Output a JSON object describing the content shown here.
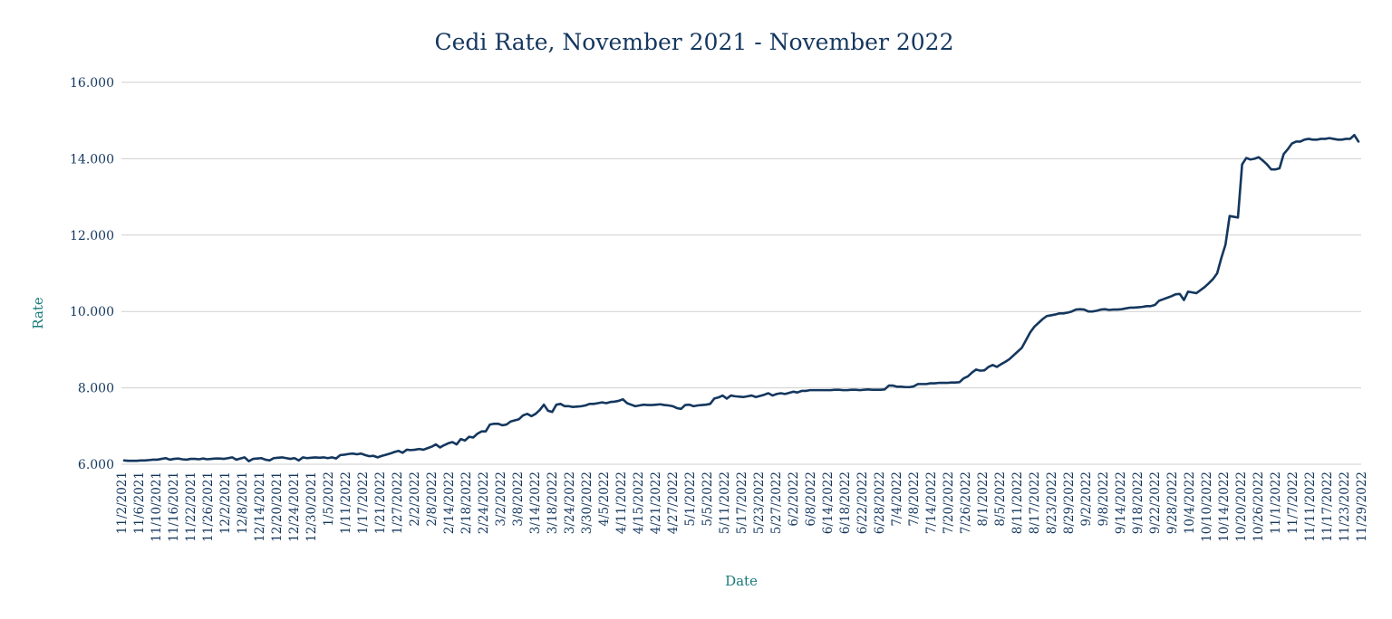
{
  "chart_data": {
    "type": "line",
    "title": "Cedi Rate, November 2021 - November 2022",
    "xlabel": "Date",
    "ylabel": "Rate",
    "ylim": [
      6,
      16
    ],
    "yticks": [
      "6.000",
      "8.000",
      "10.000",
      "12.000",
      "14.000",
      "16.000"
    ],
    "grid": true,
    "legend": "none",
    "line_color": "#14375e",
    "x_tick_labels": [
      "11/2/2021",
      "11/6/2021",
      "11/10/2021",
      "11/16/2021",
      "11/22/2021",
      "11/26/2021",
      "12/2/2021",
      "12/8/2021",
      "12/14/2021",
      "12/20/2021",
      "12/24/2021",
      "12/30/2021",
      "1/5/2022",
      "1/11/2022",
      "1/17/2022",
      "1/21/2022",
      "1/27/2022",
      "2/2/2022",
      "2/8/2022",
      "2/14/2022",
      "2/18/2022",
      "2/24/2022",
      "3/2/2022",
      "3/8/2022",
      "3/14/2022",
      "3/18/2022",
      "3/24/2022",
      "3/30/2022",
      "4/5/2022",
      "4/11/2022",
      "4/15/2022",
      "4/21/2022",
      "4/27/2022",
      "5/1/2022",
      "5/5/2022",
      "5/11/2022",
      "5/17/2022",
      "5/23/2022",
      "5/27/2022",
      "6/2/2022",
      "6/8/2022",
      "6/14/2022",
      "6/18/2022",
      "6/22/2022",
      "6/28/2022",
      "7/4/2022",
      "7/8/2022",
      "7/14/2022",
      "7/20/2022",
      "7/26/2022",
      "8/1/2022",
      "8/5/2022",
      "8/11/2022",
      "8/17/2022",
      "8/23/2022",
      "8/29/2022",
      "9/2/2022",
      "9/8/2022",
      "9/14/2022",
      "9/18/2022",
      "9/22/2022",
      "9/28/2022",
      "10/4/2022",
      "10/10/2022",
      "10/14/2022",
      "10/20/2022",
      "10/26/2022",
      "11/1/2022",
      "11/7/2022",
      "11/11/2022",
      "11/17/2022",
      "11/23/2022",
      "11/29/2022"
    ],
    "series": [
      {
        "values": [
          6.1,
          6.09,
          6.09,
          6.09,
          6.1,
          6.1,
          6.11,
          6.12,
          6.12,
          6.14,
          6.16,
          6.12,
          6.14,
          6.15,
          6.13,
          6.12,
          6.14,
          6.14,
          6.13,
          6.15,
          6.13,
          6.14,
          6.15,
          6.15,
          6.14,
          6.16,
          6.18,
          6.12,
          6.15,
          6.18,
          6.08,
          6.14,
          6.15,
          6.16,
          6.12,
          6.1,
          6.16,
          6.17,
          6.18,
          6.16,
          6.14,
          6.16,
          6.1,
          6.18,
          6.16,
          6.17,
          6.18,
          6.17,
          6.18,
          6.16,
          6.18,
          6.15,
          6.24,
          6.25,
          6.27,
          6.28,
          6.26,
          6.28,
          6.24,
          6.21,
          6.22,
          6.18,
          6.22,
          6.25,
          6.28,
          6.32,
          6.35,
          6.3,
          6.38,
          6.37,
          6.38,
          6.4,
          6.38,
          6.42,
          6.46,
          6.52,
          6.44,
          6.5,
          6.55,
          6.58,
          6.52,
          6.66,
          6.62,
          6.72,
          6.7,
          6.8,
          6.86,
          6.86,
          7.04,
          7.06,
          7.06,
          7.02,
          7.04,
          7.12,
          7.15,
          7.18,
          7.28,
          7.32,
          7.26,
          7.32,
          7.42,
          7.56,
          7.4,
          7.37,
          7.56,
          7.58,
          7.52,
          7.52,
          7.5,
          7.51,
          7.52,
          7.54,
          7.58,
          7.58,
          7.6,
          7.62,
          7.6,
          7.63,
          7.64,
          7.66,
          7.7,
          7.6,
          7.56,
          7.52,
          7.54,
          7.56,
          7.55,
          7.55,
          7.56,
          7.57,
          7.55,
          7.54,
          7.52,
          7.47,
          7.45,
          7.55,
          7.56,
          7.52,
          7.54,
          7.55,
          7.56,
          7.58,
          7.72,
          7.75,
          7.8,
          7.72,
          7.8,
          7.78,
          7.77,
          7.76,
          7.78,
          7.8,
          7.76,
          7.79,
          7.82,
          7.86,
          7.8,
          7.84,
          7.86,
          7.84,
          7.87,
          7.9,
          7.88,
          7.92,
          7.92,
          7.94,
          7.94,
          7.94,
          7.94,
          7.94,
          7.94,
          7.95,
          7.95,
          7.94,
          7.94,
          7.95,
          7.95,
          7.94,
          7.95,
          7.96,
          7.95,
          7.95,
          7.95,
          7.96,
          8.06,
          8.06,
          8.03,
          8.03,
          8.02,
          8.02,
          8.04,
          8.1,
          8.1,
          8.1,
          8.12,
          8.12,
          8.13,
          8.13,
          8.13,
          8.14,
          8.14,
          8.15,
          8.25,
          8.3,
          8.4,
          8.48,
          8.45,
          8.46,
          8.55,
          8.6,
          8.55,
          8.62,
          8.68,
          8.75,
          8.85,
          8.95,
          9.05,
          9.25,
          9.45,
          9.6,
          9.7,
          9.8,
          9.88,
          9.9,
          9.92,
          9.95,
          9.95,
          9.97,
          10.0,
          10.05,
          10.06,
          10.05,
          10.0,
          10.0,
          10.02,
          10.05,
          10.06,
          10.04,
          10.05,
          10.05,
          10.06,
          10.08,
          10.1,
          10.1,
          10.11,
          10.12,
          10.14,
          10.14,
          10.17,
          10.28,
          10.32,
          10.36,
          10.4,
          10.45,
          10.46,
          10.3,
          10.52,
          10.5,
          10.48,
          10.56,
          10.64,
          10.74,
          10.85,
          11.0,
          11.4,
          11.75,
          12.5,
          12.48,
          12.46,
          13.85,
          14.02,
          13.98,
          14.0,
          14.04,
          13.95,
          13.85,
          13.72,
          13.72,
          13.75,
          14.12,
          14.25,
          14.4,
          14.45,
          14.45,
          14.5,
          14.52,
          14.5,
          14.5,
          14.52,
          14.52,
          14.54,
          14.52,
          14.5,
          14.5,
          14.52,
          14.52,
          14.62,
          14.45
        ]
      }
    ]
  }
}
